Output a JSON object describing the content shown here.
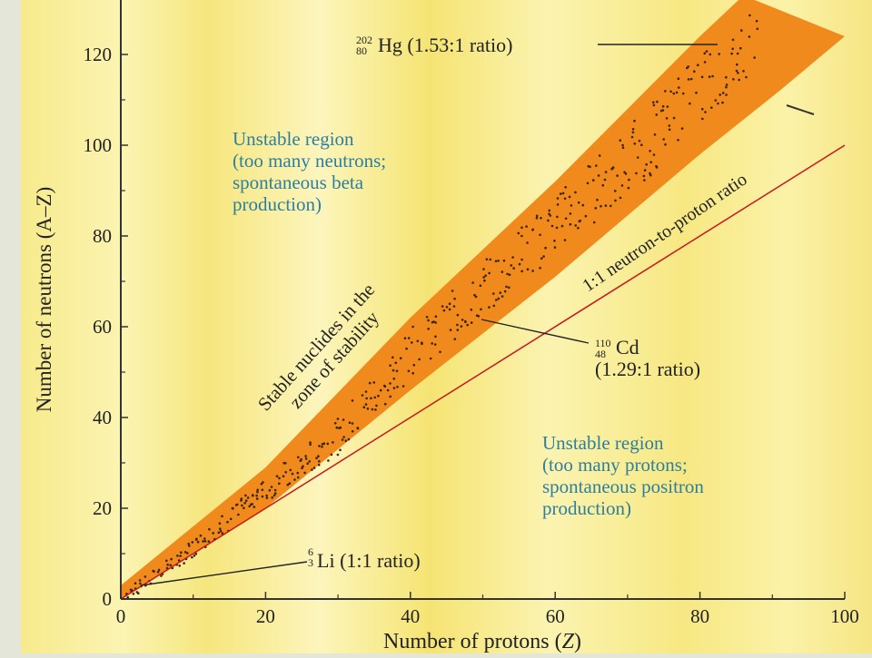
{
  "chart_data": {
    "type": "scatter",
    "xlabel_main": "Number of protons (",
    "xlabel_var": "Z",
    "xlabel_close": ")",
    "ylabel": "Number of neutrons (A–Z)",
    "xlim": [
      0,
      100
    ],
    "ylim": [
      0,
      130
    ],
    "x_ticks": [
      0,
      20,
      40,
      60,
      80,
      100
    ],
    "y_ticks": [
      0,
      20,
      40,
      60,
      80,
      100,
      120
    ],
    "grid": false,
    "reference_line": {
      "label": "1:1 neutron-to-proton ratio",
      "slope": 1,
      "color": "#c8161d"
    },
    "band": {
      "label": "Stable nuclides in the zone of stability",
      "label_lines": [
        "Stable nuclides in the",
        "zone of stability"
      ],
      "color": "#f08a1c",
      "lower": [
        [
          0,
          0
        ],
        [
          20,
          20
        ],
        [
          40,
          46
        ],
        [
          60,
          71
        ],
        [
          80,
          98
        ],
        [
          91,
          112
        ],
        [
          100,
          124
        ]
      ],
      "upper": [
        [
          0,
          3
        ],
        [
          20,
          29
        ],
        [
          40,
          62
        ],
        [
          60,
          92
        ],
        [
          80,
          124
        ],
        [
          86,
          133
        ]
      ]
    },
    "series": [
      {
        "name": "Stable nuclides",
        "center": [
          [
            1,
            1
          ],
          [
            10,
            11
          ],
          [
            20,
            24
          ],
          [
            30,
            36
          ],
          [
            40,
            54
          ],
          [
            50,
            68
          ],
          [
            60,
            82
          ],
          [
            70,
            96
          ],
          [
            80,
            112
          ],
          [
            88,
            126
          ]
        ]
      }
    ],
    "annotations": [
      {
        "id": "hg",
        "sup": "202",
        "sub": "80",
        "symbol": "Hg",
        "ratio": "(1.53:1 ratio)",
        "point": [
          83,
          127
        ]
      },
      {
        "id": "cd",
        "sup": "110",
        "sub": "48",
        "symbol": "Cd",
        "ratio": "(1.29:1 ratio)",
        "point": [
          48,
          62
        ]
      },
      {
        "id": "li",
        "sup": "6",
        "sub": "3",
        "symbol": "Li",
        "ratio": "(1:1 ratio)",
        "point": [
          3,
          3
        ]
      }
    ],
    "regions": [
      {
        "id": "neutron-rich",
        "lines": [
          "Unstable region",
          "(too many neutrons;",
          "spontaneous beta",
          "production)"
        ],
        "color": "#2d7f9e"
      },
      {
        "id": "proton-rich",
        "lines": [
          "Unstable region",
          "(too many protons;",
          "spontaneous positron",
          "production)"
        ],
        "color": "#2d7f9e"
      }
    ],
    "colors": {
      "background": "#fbf3a0",
      "band": "#f08a1c",
      "dots": "#3a2310",
      "reference_line": "#c8161d",
      "region_text": "#2d7f9e"
    }
  }
}
